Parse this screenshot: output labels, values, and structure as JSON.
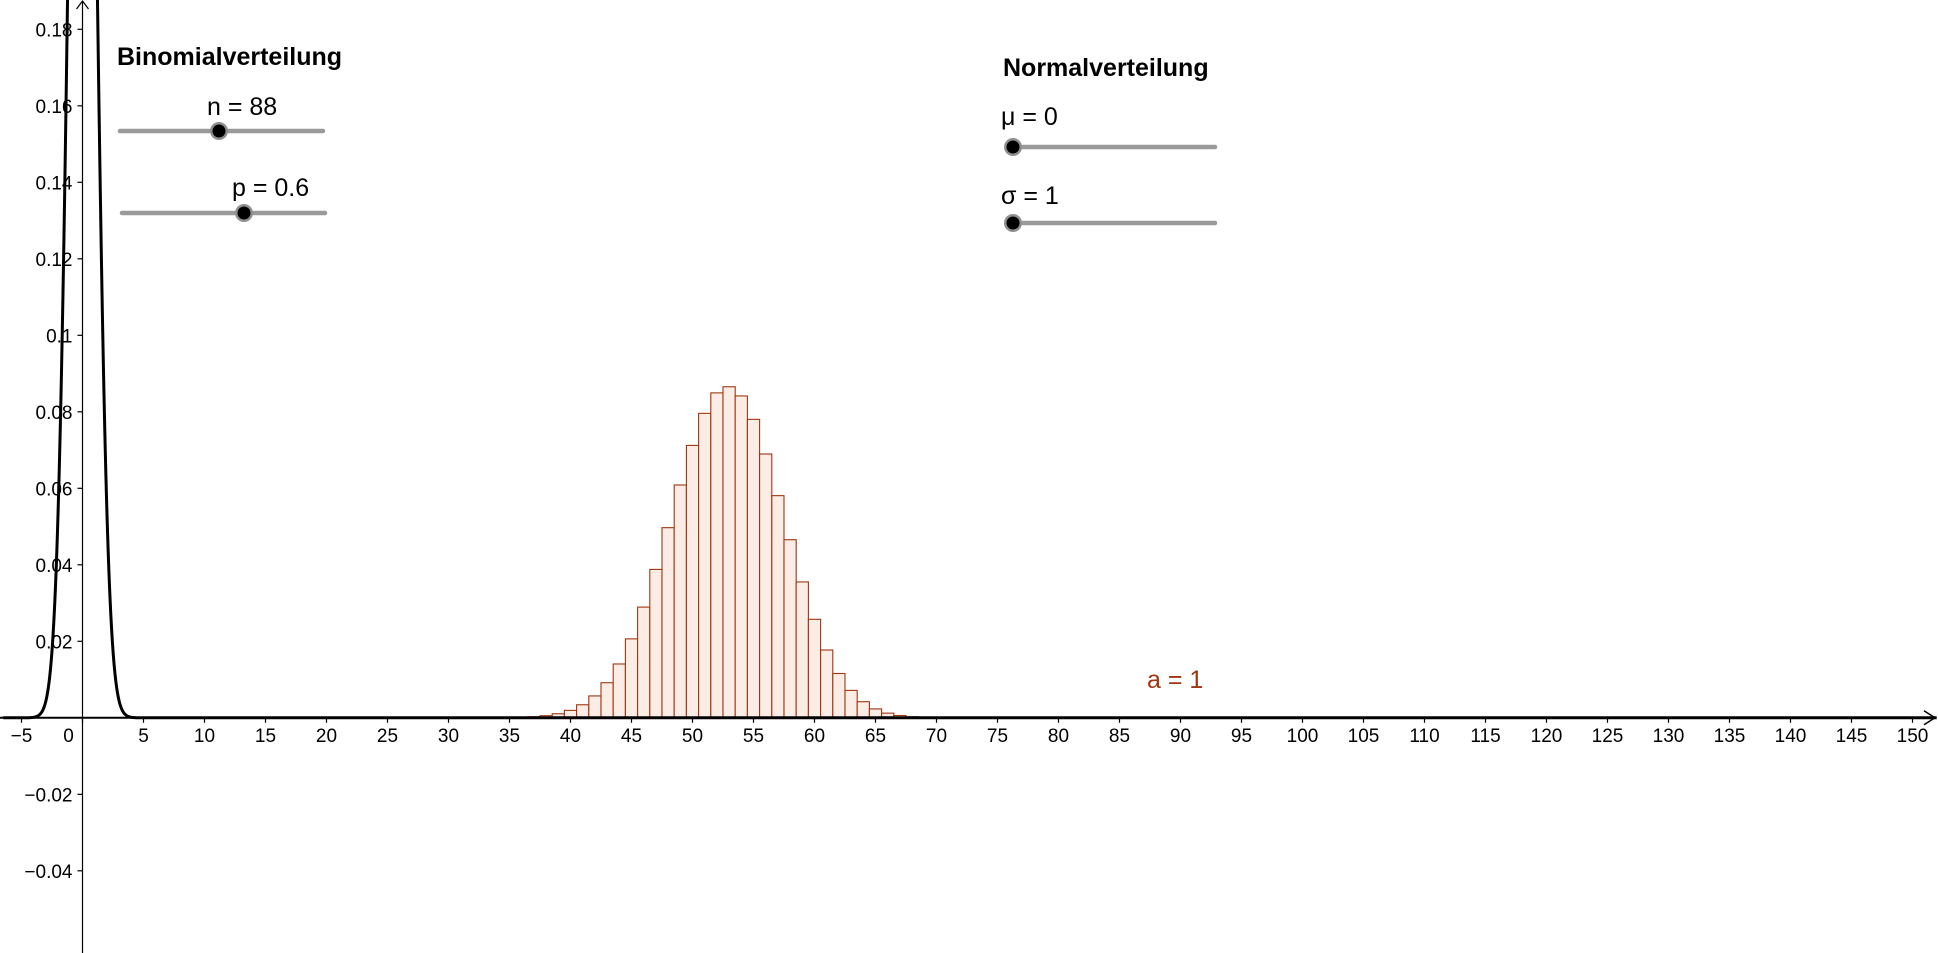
{
  "colors": {
    "bars_stroke": "#a0360f",
    "bars_fill": "#fbece6",
    "normal_curve": "#000000",
    "axes": "#000000",
    "slider_track": "#9a9a9a",
    "slider_knob": "#000000",
    "annotation": "#a0360f"
  },
  "panels": {
    "binomial": {
      "title": "Binomialverteilung",
      "sliders": [
        {
          "label": "n = 88",
          "value": 88
        },
        {
          "label": "p = 0.6",
          "value": 0.6
        }
      ]
    },
    "normal": {
      "title": "Normalverteilung",
      "sliders": [
        {
          "label": "μ = 0",
          "value": 0
        },
        {
          "label": "σ = 1",
          "value": 1
        }
      ]
    }
  },
  "chart_data": {
    "type": "bar",
    "description_type": "binomial histogram with normal density curve",
    "xlim": [
      -6.5,
      152
    ],
    "ylim": [
      -0.06,
      0.187
    ],
    "x_ticks": [
      -5,
      0,
      5,
      10,
      15,
      20,
      25,
      30,
      35,
      40,
      45,
      50,
      55,
      60,
      65,
      70,
      75,
      80,
      85,
      90,
      95,
      100,
      105,
      110,
      115,
      120,
      125,
      130,
      135,
      140,
      145,
      150
    ],
    "x_tick_labels": [
      "−5",
      "0",
      "5",
      "10",
      "15",
      "20",
      "25",
      "30",
      "35",
      "40",
      "45",
      "50",
      "55",
      "60",
      "65",
      "70",
      "75",
      "80",
      "85",
      "90",
      "95",
      "100",
      "105",
      "110",
      "115",
      "120",
      "125",
      "130",
      "135",
      "140",
      "145",
      "150"
    ],
    "y_ticks": [
      -0.04,
      -0.02,
      0.02,
      0.04,
      0.06,
      0.08,
      0.1,
      0.12,
      0.14,
      0.16,
      0.18
    ],
    "y_tick_labels": [
      "−0.04",
      "−0.02",
      "0.02",
      "0.04",
      "0.06",
      "0.08",
      "0.1",
      "0.12",
      "0.14",
      "0.16",
      "0.18"
    ],
    "grid": false,
    "binomial": {
      "n": 88,
      "p": 0.6,
      "bar_width": 1
    },
    "normal": {
      "mu": 0,
      "sigma": 1
    },
    "annotation": "a = 1"
  }
}
